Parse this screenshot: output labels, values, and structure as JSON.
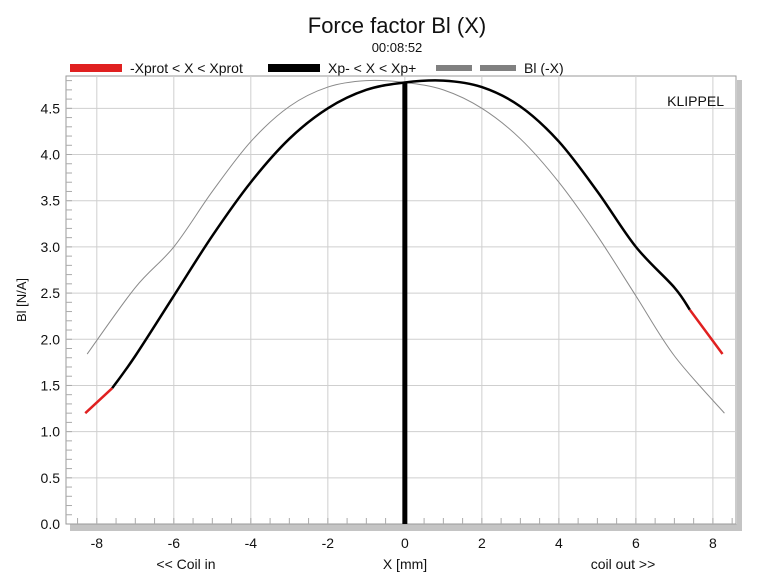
{
  "chart_data": {
    "type": "line",
    "title": "Force factor Bl (X)",
    "subtitle": "00:08:52",
    "watermark": "KLIPPEL",
    "xlabel": "X [mm]",
    "ylabel": "Bl [N/A]",
    "x_left_note": "<< Coil in",
    "x_right_note": "coil out >>",
    "xlim": [
      -8.8,
      8.6
    ],
    "ylim": [
      0,
      4.85
    ],
    "x_ticks": [
      -8,
      -6,
      -4,
      -2,
      0,
      2,
      4,
      6,
      8
    ],
    "y_ticks": [
      0.0,
      0.5,
      1.0,
      1.5,
      2.0,
      2.5,
      3.0,
      3.5,
      4.0,
      4.5
    ],
    "y_tick_labels": [
      "0.0",
      "0.5",
      "1.0",
      "1.5",
      "2.0",
      "2.5",
      "3.0",
      "3.5",
      "4.0",
      "4.5"
    ],
    "grid": true,
    "legend_position": "top",
    "marker_line_x": 0,
    "colors": {
      "prot": "#e02020",
      "xp": "#000000",
      "neg": "#8a8a8a",
      "legend_neg": "#808080",
      "grid": "#cfcfcf"
    },
    "series": [
      {
        "name": "-Xprot < X < Xprot",
        "x": [
          -8.3,
          -7.6,
          7.4,
          8.25
        ],
        "y": [
          1.2,
          1.47,
          2.32,
          1.84
        ]
      },
      {
        "name": "Xp- < X < Xp+",
        "x": [
          -7.6,
          -7,
          -6,
          -5,
          -4,
          -3,
          -2,
          -1,
          0,
          1,
          2,
          3,
          4,
          5,
          6,
          7,
          7.4
        ],
        "y": [
          1.47,
          1.82,
          2.47,
          3.12,
          3.7,
          4.17,
          4.5,
          4.7,
          4.78,
          4.8,
          4.73,
          4.52,
          4.14,
          3.6,
          3.0,
          2.56,
          2.32
        ]
      },
      {
        "name": "Bl (-X)",
        "x": [
          -8.25,
          -7,
          -6,
          -5,
          -4,
          -3,
          -2,
          -1,
          0,
          1,
          2,
          3,
          4,
          5,
          6,
          7,
          8.3
        ],
        "y": [
          1.84,
          2.56,
          3.0,
          3.6,
          4.14,
          4.52,
          4.73,
          4.8,
          4.78,
          4.7,
          4.5,
          4.17,
          3.7,
          3.12,
          2.47,
          1.82,
          1.2
        ]
      }
    ]
  }
}
